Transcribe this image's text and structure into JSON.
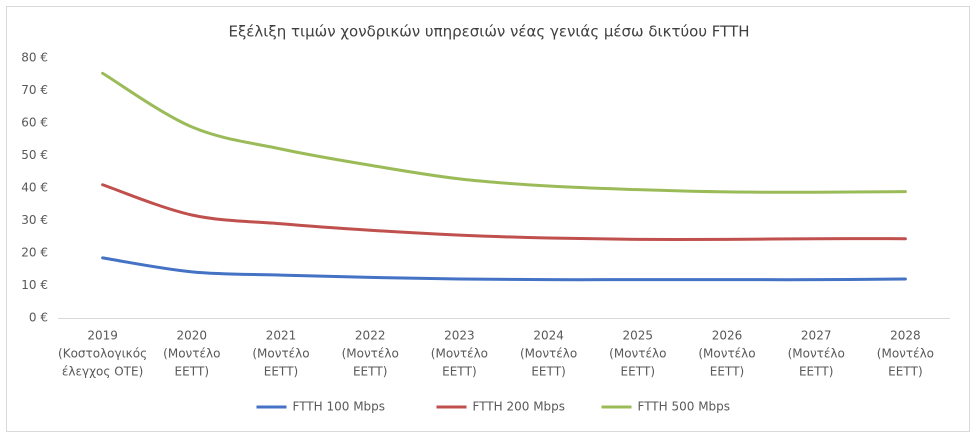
{
  "chart_data": {
    "type": "line",
    "title": "Εξέλιξη τιμών χονδρικών υπηρεσιών νέας γενιάς μέσω δικτύου FTTH",
    "categories": [
      [
        "2019",
        "(Κοστολογικός",
        "έλεγχος ΟΤΕ)"
      ],
      [
        "2020",
        "(Μοντέλο",
        "ΕΕΤΤ)"
      ],
      [
        "2021",
        "(Μοντέλο",
        "ΕΕΤΤ)"
      ],
      [
        "2022",
        "(Μοντέλο",
        "ΕΕΤΤ)"
      ],
      [
        "2023",
        "(Μοντέλο",
        "ΕΕΤΤ)"
      ],
      [
        "2024",
        "(Μοντέλο",
        "ΕΕΤΤ)"
      ],
      [
        "2025",
        "(Μοντέλο",
        "ΕΕΤΤ)"
      ],
      [
        "2026",
        "(Μοντέλο",
        "ΕΕΤΤ)"
      ],
      [
        "2027",
        "(Μοντέλο",
        "ΕΕΤΤ)"
      ],
      [
        "2028",
        "(Μοντέλο",
        "ΕΕΤΤ)"
      ]
    ],
    "series": [
      {
        "name": "FTTH 100 Mbps",
        "color": "#4472c4",
        "values": [
          18.5,
          14.2,
          13.2,
          12.5,
          12.0,
          11.8,
          11.8,
          11.8,
          11.8,
          12.0
        ]
      },
      {
        "name": "FTTH 200 Mbps",
        "color": "#c0504d",
        "values": [
          41.0,
          31.7,
          29.0,
          27.0,
          25.5,
          24.6,
          24.2,
          24.2,
          24.4,
          24.4
        ]
      },
      {
        "name": "FTTH 500 Mbps",
        "color": "#9bbb59",
        "values": [
          75.3,
          58.8,
          52.0,
          47.0,
          42.8,
          40.6,
          39.5,
          38.8,
          38.7,
          38.9
        ]
      }
    ],
    "ylim": [
      0,
      80
    ],
    "yticks": [
      {
        "value": 0,
        "label": "0 €"
      },
      {
        "value": 10,
        "label": "10 €"
      },
      {
        "value": 20,
        "label": "20 €"
      },
      {
        "value": 30,
        "label": "30 €"
      },
      {
        "value": 40,
        "label": "40 €"
      },
      {
        "value": 50,
        "label": "50 €"
      },
      {
        "value": 60,
        "label": "60 €"
      },
      {
        "value": 70,
        "label": "70 €"
      },
      {
        "value": 80,
        "label": "80 €"
      }
    ],
    "grid": false,
    "legend": "bottom"
  }
}
